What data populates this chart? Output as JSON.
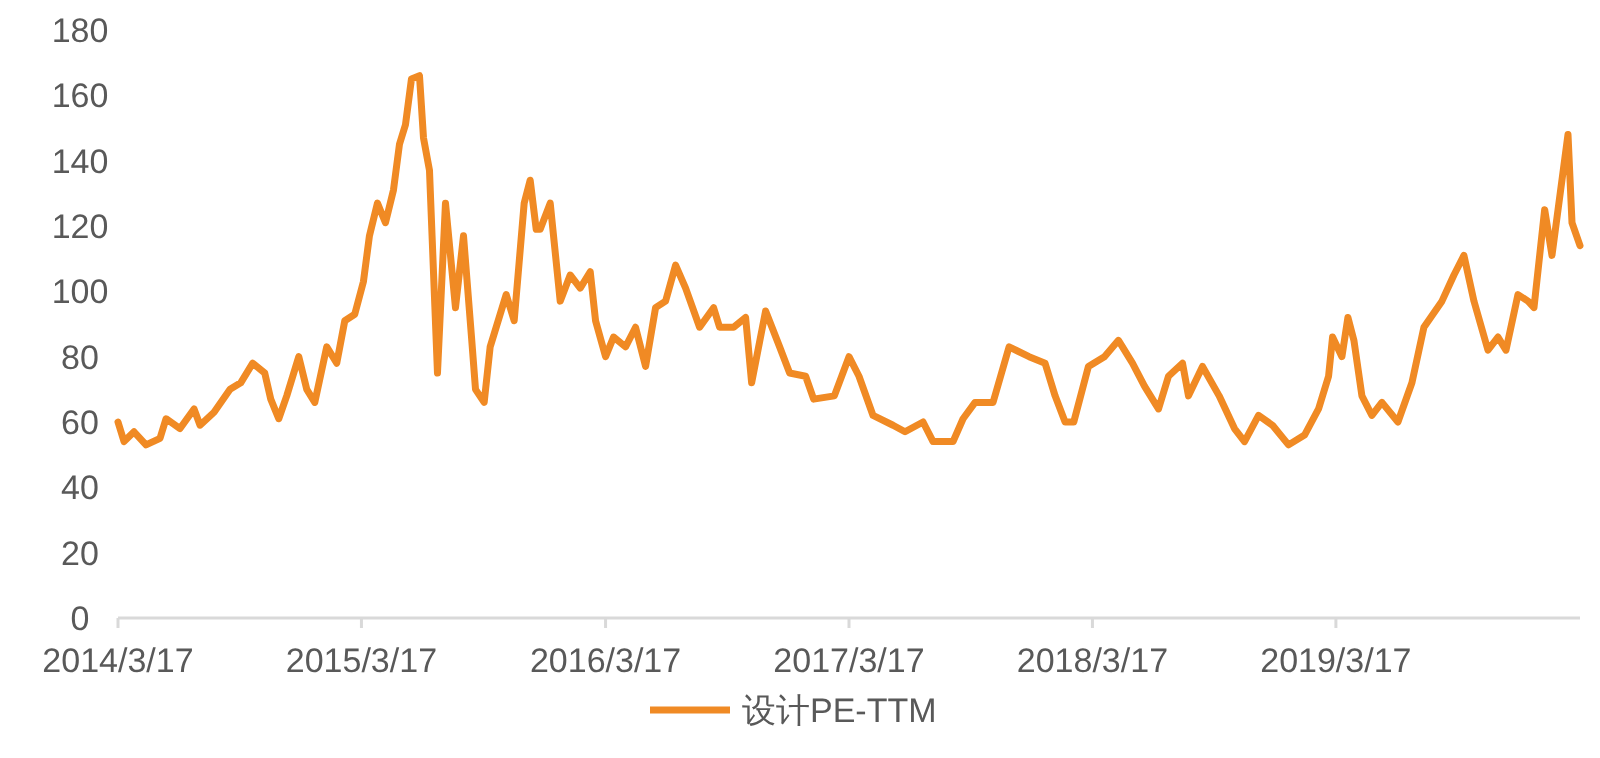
{
  "chart_data": {
    "type": "line",
    "legend": "bottom",
    "grid": false,
    "marker": "none",
    "line_style": "solid",
    "xlim": [
      "2014-03-17",
      "2020-03-17"
    ],
    "xticks": [
      {
        "value": "2014-03-17",
        "label": "2014/3/17"
      },
      {
        "value": "2015-03-17",
        "label": "2015/3/17"
      },
      {
        "value": "2016-03-17",
        "label": "2016/3/17"
      },
      {
        "value": "2017-03-17",
        "label": "2017/3/17"
      },
      {
        "value": "2018-03-17",
        "label": "2018/3/17"
      },
      {
        "value": "2019-03-17",
        "label": "2019/3/17"
      }
    ],
    "ylim": [
      0,
      180
    ],
    "yticks": [
      0,
      20,
      40,
      60,
      80,
      100,
      120,
      140,
      160,
      180
    ],
    "x": [
      "2014-03-17",
      "2014-03-26",
      "2014-04-10",
      "2014-04-28",
      "2014-05-19",
      "2014-05-28",
      "2014-06-18",
      "2014-07-09",
      "2014-07-18",
      "2014-08-08",
      "2014-09-01",
      "2014-09-17",
      "2014-10-05",
      "2014-10-23",
      "2014-11-01",
      "2014-11-13",
      "2014-11-25",
      "2014-12-13",
      "2014-12-25",
      "2015-01-06",
      "2015-01-24",
      "2015-02-08",
      "2015-02-20",
      "2015-03-07",
      "2015-03-20",
      "2015-03-29",
      "2015-04-10",
      "2015-04-22",
      "2015-05-04",
      "2015-05-13",
      "2015-05-22",
      "2015-05-31",
      "2015-06-12",
      "2015-06-18",
      "2015-06-27",
      "2015-07-09",
      "2015-07-21",
      "2015-08-05",
      "2015-08-17",
      "2015-08-29",
      "2015-09-04",
      "2015-09-17",
      "2015-09-26",
      "2015-10-20",
      "2015-11-01",
      "2015-11-16",
      "2015-11-25",
      "2015-12-04",
      "2015-12-10",
      "2015-12-25",
      "2016-01-09",
      "2016-01-24",
      "2016-02-08",
      "2016-02-23",
      "2016-03-02",
      "2016-03-17",
      "2016-03-29",
      "2016-04-16",
      "2016-05-01",
      "2016-05-16",
      "2016-05-31",
      "2016-06-15",
      "2016-06-30",
      "2016-07-15",
      "2016-08-05",
      "2016-08-26",
      "2016-09-04",
      "2016-09-25",
      "2016-10-13",
      "2016-10-22",
      "2016-11-12",
      "2016-12-03",
      "2016-12-18",
      "2017-01-11",
      "2017-01-23",
      "2017-02-23",
      "2017-03-17",
      "2017-04-01",
      "2017-04-22",
      "2017-05-22",
      "2017-06-09",
      "2017-07-06",
      "2017-07-21",
      "2017-08-20",
      "2017-09-04",
      "2017-09-22",
      "2017-10-19",
      "2017-11-12",
      "2017-12-12",
      "2018-01-05",
      "2018-01-20",
      "2018-02-04",
      "2018-02-17",
      "2018-03-11",
      "2018-04-04",
      "2018-04-25",
      "2018-05-16",
      "2018-06-03",
      "2018-06-24",
      "2018-07-09",
      "2018-07-30",
      "2018-08-08",
      "2018-08-29",
      "2018-09-23",
      "2018-10-16",
      "2018-10-31",
      "2018-11-21",
      "2018-12-12",
      "2019-01-05",
      "2019-01-29",
      "2019-02-19",
      "2019-03-06",
      "2019-03-12",
      "2019-03-26",
      "2019-04-04",
      "2019-04-13",
      "2019-04-25",
      "2019-05-10",
      "2019-05-25",
      "2019-06-18",
      "2019-07-09",
      "2019-07-27",
      "2019-08-23",
      "2019-09-10",
      "2019-09-25",
      "2019-10-10",
      "2019-10-31",
      "2019-11-15",
      "2019-11-27",
      "2019-12-15",
      "2019-12-30",
      "2020-01-08",
      "2020-01-24",
      "2020-02-04",
      "2020-02-28",
      "2020-03-05",
      "2020-03-17"
    ],
    "series": [
      {
        "name": "设计PE-TTM",
        "color": "#f08a24",
        "values": [
          60,
          54,
          57,
          53,
          55,
          61,
          58,
          64,
          59,
          63,
          70,
          72,
          78,
          75,
          67,
          61,
          68,
          80,
          70,
          66,
          83,
          78,
          91,
          93,
          103,
          117,
          127,
          121,
          131,
          145,
          151,
          165,
          166,
          147,
          137,
          75,
          127,
          95,
          117,
          86,
          70,
          66,
          83,
          99,
          91,
          127,
          134,
          119,
          119,
          127,
          97,
          105,
          101,
          106,
          91,
          80,
          86,
          83,
          89,
          77,
          95,
          97,
          108,
          101,
          89,
          95,
          89,
          89,
          92,
          72,
          94,
          83,
          75,
          74,
          67,
          68,
          80,
          74,
          62,
          59,
          57,
          60,
          54,
          54,
          61,
          66,
          66,
          83,
          80,
          78,
          68,
          60,
          60,
          77,
          80,
          85,
          78,
          71,
          64,
          74,
          78,
          68,
          77,
          68,
          58,
          54,
          62,
          59,
          53,
          56,
          64,
          74,
          86,
          80,
          92,
          85,
          68,
          62,
          66,
          60,
          72,
          89,
          97,
          105,
          111,
          97,
          82,
          86,
          82,
          99,
          97,
          95,
          125,
          111,
          148,
          121,
          114
        ]
      }
    ]
  }
}
